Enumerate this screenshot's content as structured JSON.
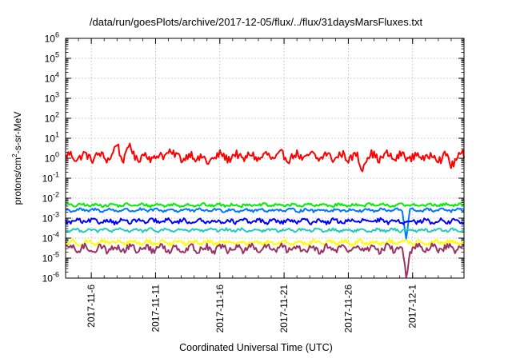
{
  "chart_data": {
    "type": "line",
    "title": "/data/run/goesPlots/archive/2017-12-05/flux/../flux/31daysMarsFluxes.txt",
    "xlabel": "Coordinated Universal Time (UTC)",
    "ylabel": {
      "pre": "protons/cm",
      "sup": "2",
      "post": "-s-sr-MeV"
    },
    "yscale": "log",
    "ylim": [
      1e-06,
      1000000.0
    ],
    "yticks": [
      {
        "base": "10",
        "exp": "-6"
      },
      {
        "base": "10",
        "exp": "-5"
      },
      {
        "base": "10",
        "exp": "-4"
      },
      {
        "base": "10",
        "exp": "-3"
      },
      {
        "base": "10",
        "exp": "-2"
      },
      {
        "base": "10",
        "exp": "-1"
      },
      {
        "base": "10",
        "exp": "0"
      },
      {
        "base": "10",
        "exp": "1"
      },
      {
        "base": "10",
        "exp": "2"
      },
      {
        "base": "10",
        "exp": "3"
      },
      {
        "base": "10",
        "exp": "4"
      },
      {
        "base": "10",
        "exp": "5"
      },
      {
        "base": "10",
        "exp": "6"
      }
    ],
    "xlim": [
      "2017-11-04",
      "2017-12-05"
    ],
    "xticks": [
      "2017-11-6",
      "2017-11-11",
      "2017-11-16",
      "2017-11-21",
      "2017-11-26",
      "2017-12-1"
    ],
    "grid": true,
    "series": [
      {
        "color": "#ff0000",
        "level": 1.2,
        "variation": 0.25,
        "points": [
          [
            "2017-11-08",
            5
          ],
          [
            "2017-11-09",
            4
          ],
          [
            "2017-11-12",
            3
          ],
          [
            "2017-11-15",
            0.4
          ],
          [
            "2017-11-27",
            0.3
          ],
          [
            "2017-12-04",
            0.4
          ]
        ]
      },
      {
        "color": "#00ee00",
        "level": 0.0045,
        "variation": 0.08
      },
      {
        "color": "#0077ff",
        "level": 0.0025,
        "variation": 0.08,
        "dip": [
          "2017-11-30",
          0.0001
        ]
      },
      {
        "color": "#0000ff",
        "level": 0.0007,
        "variation": 0.12
      },
      {
        "color": "#22ccbb",
        "level": 0.00025,
        "variation": 0.08
      },
      {
        "color": "#ffff00",
        "level": 6e-05,
        "variation": 0.12
      },
      {
        "color": "#993366",
        "level": 3e-05,
        "variation": 0.2,
        "dip": [
          "2017-11-30",
          1e-06
        ]
      }
    ]
  }
}
